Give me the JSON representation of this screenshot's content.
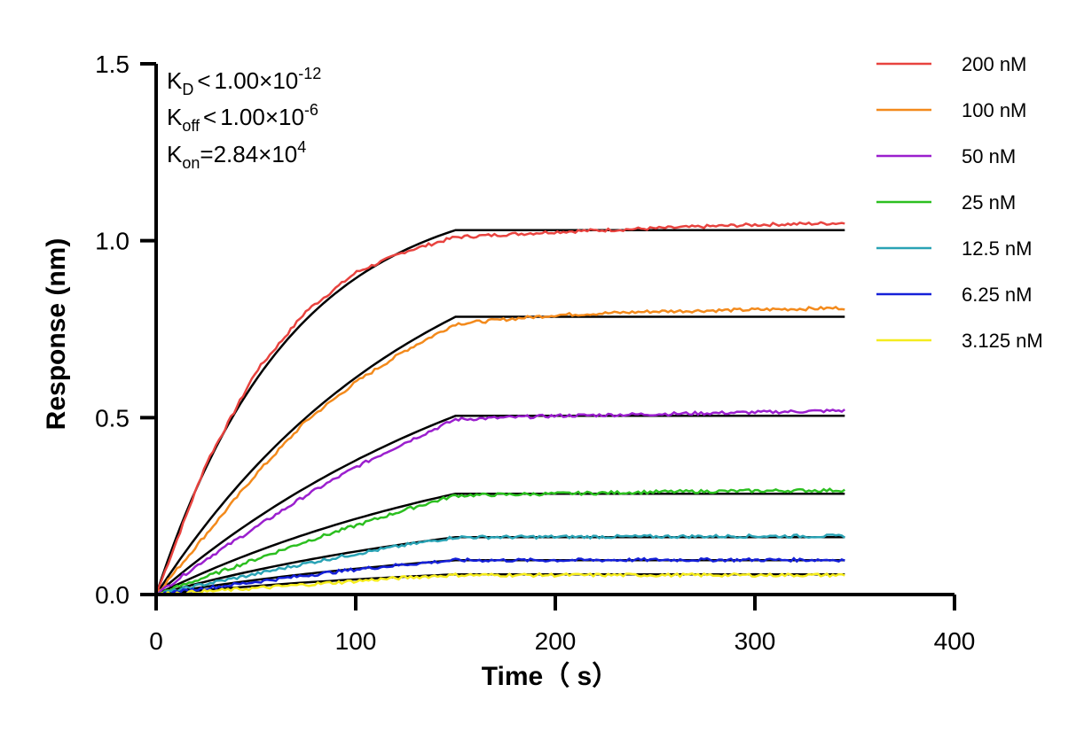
{
  "chart_data": {
    "type": "line",
    "title": "",
    "xlabel": "Time（ s）",
    "ylabel": "Response (nm)",
    "xlim": [
      0,
      400
    ],
    "ylim": [
      0,
      1.5
    ],
    "x_ticks": [
      "0",
      "100",
      "200",
      "300",
      "400"
    ],
    "y_ticks": [
      "0.0",
      "0.5",
      "1.0",
      "1.5"
    ],
    "grid": false,
    "legend_position": "top-right",
    "association_end": 150,
    "data_end": 345,
    "annotations": {
      "kd": {
        "label": "K",
        "sub": "D",
        "relation": "<",
        "mantissa": "1.00×10",
        "exp": "-12"
      },
      "koff": {
        "label": "K",
        "sub": "off",
        "relation": "<",
        "mantissa": "1.00×10",
        "exp": "-6"
      },
      "kon": {
        "label": "K",
        "sub": "on",
        "relation": "=",
        "mantissa": "2.84×10",
        "exp": "4"
      }
    },
    "series": [
      {
        "name": "200 nM",
        "color": "#e8433f",
        "plateau": 1.05,
        "fit_plateau": 1.03,
        "assoc": [
          [
            0,
            0
          ],
          [
            25,
            0.37
          ],
          [
            50,
            0.63
          ],
          [
            75,
            0.8
          ],
          [
            100,
            0.91
          ],
          [
            125,
            0.97
          ],
          [
            150,
            1.01
          ],
          [
            200,
            1.025
          ],
          [
            250,
            1.035
          ],
          [
            300,
            1.045
          ],
          [
            345,
            1.05
          ]
        ]
      },
      {
        "name": "100 nM",
        "color": "#f38a1c",
        "plateau": 0.81,
        "fit_plateau": 0.785,
        "assoc": [
          [
            0,
            0
          ],
          [
            25,
            0.17
          ],
          [
            50,
            0.34
          ],
          [
            75,
            0.49
          ],
          [
            100,
            0.6
          ],
          [
            125,
            0.69
          ],
          [
            150,
            0.765
          ],
          [
            200,
            0.79
          ],
          [
            250,
            0.8
          ],
          [
            300,
            0.805
          ],
          [
            345,
            0.81
          ]
        ]
      },
      {
        "name": "50 nM",
        "color": "#9b1fce",
        "plateau": 0.52,
        "fit_plateau": 0.505,
        "assoc": [
          [
            0,
            0
          ],
          [
            25,
            0.1
          ],
          [
            50,
            0.19
          ],
          [
            75,
            0.28
          ],
          [
            100,
            0.36
          ],
          [
            125,
            0.43
          ],
          [
            150,
            0.495
          ],
          [
            200,
            0.505
          ],
          [
            250,
            0.51
          ],
          [
            300,
            0.515
          ],
          [
            345,
            0.52
          ]
        ]
      },
      {
        "name": "25 nM",
        "color": "#2cbf20",
        "plateau": 0.295,
        "fit_plateau": 0.285,
        "assoc": [
          [
            0,
            0
          ],
          [
            25,
            0.05
          ],
          [
            50,
            0.1
          ],
          [
            75,
            0.15
          ],
          [
            100,
            0.195
          ],
          [
            125,
            0.24
          ],
          [
            150,
            0.28
          ],
          [
            200,
            0.285
          ],
          [
            250,
            0.29
          ],
          [
            300,
            0.293
          ],
          [
            345,
            0.295
          ]
        ]
      },
      {
        "name": "12.5 nM",
        "color": "#2aa3b5",
        "plateau": 0.165,
        "fit_plateau": 0.162,
        "assoc": [
          [
            0,
            0
          ],
          [
            25,
            0.03
          ],
          [
            50,
            0.058
          ],
          [
            75,
            0.088
          ],
          [
            100,
            0.115
          ],
          [
            125,
            0.14
          ],
          [
            150,
            0.162
          ],
          [
            200,
            0.163
          ],
          [
            250,
            0.164
          ],
          [
            300,
            0.165
          ],
          [
            345,
            0.165
          ]
        ]
      },
      {
        "name": "6.25 nM",
        "color": "#1520d8",
        "plateau": 0.098,
        "fit_plateau": 0.097,
        "assoc": [
          [
            0,
            0
          ],
          [
            25,
            0.018
          ],
          [
            50,
            0.036
          ],
          [
            75,
            0.054
          ],
          [
            100,
            0.071
          ],
          [
            125,
            0.085
          ],
          [
            150,
            0.097
          ],
          [
            200,
            0.097
          ],
          [
            250,
            0.098
          ],
          [
            300,
            0.098
          ],
          [
            345,
            0.098
          ]
        ]
      },
      {
        "name": "3.125 nM",
        "color": "#f5ec1e",
        "plateau": 0.055,
        "fit_plateau": 0.057,
        "assoc": [
          [
            0,
            0
          ],
          [
            25,
            0.009
          ],
          [
            50,
            0.018
          ],
          [
            75,
            0.028
          ],
          [
            100,
            0.038
          ],
          [
            125,
            0.048
          ],
          [
            150,
            0.055
          ],
          [
            200,
            0.055
          ],
          [
            250,
            0.055
          ],
          [
            300,
            0.055
          ],
          [
            345,
            0.055
          ]
        ]
      }
    ]
  }
}
